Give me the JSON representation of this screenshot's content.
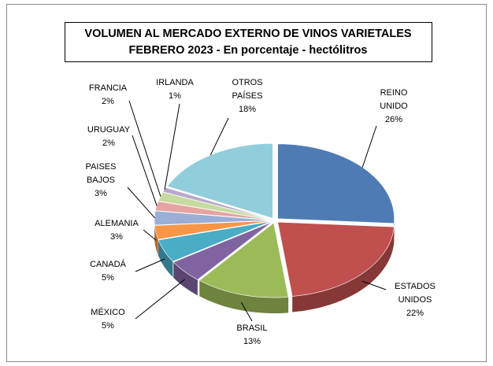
{
  "chart_data": {
    "type": "pie3d",
    "title": "VOLUMEN AL MERCADO EXTERNO DE VINOS VARIETALES",
    "subtitle": "FEBRERO 2023 - En porcentaje - hectólitros",
    "categories": [
      "REINO UNIDO",
      "ESTADOS UNIDOS",
      "BRASIL",
      "MÉXICO",
      "CANADÁ",
      "ALEMANIA",
      "PAISES BAJOS",
      "URUGUAY",
      "FRANCIA",
      "IRLANDA",
      "OTROS PAÍSES"
    ],
    "values": [
      26,
      22,
      13,
      5,
      5,
      3,
      3,
      2,
      2,
      1,
      18
    ],
    "value_labels": [
      "26%",
      "22%",
      "13%",
      "5%",
      "5%",
      "3%",
      "3%",
      "2%",
      "2%",
      "1%",
      "18%"
    ],
    "colors": [
      "#4f7bb5",
      "#c0504d",
      "#9bbb59",
      "#8064a2",
      "#4bacc6",
      "#f79646",
      "#9aaed6",
      "#e6a3a1",
      "#c6dba0",
      "#b6a8cc",
      "#92cddc"
    ]
  }
}
